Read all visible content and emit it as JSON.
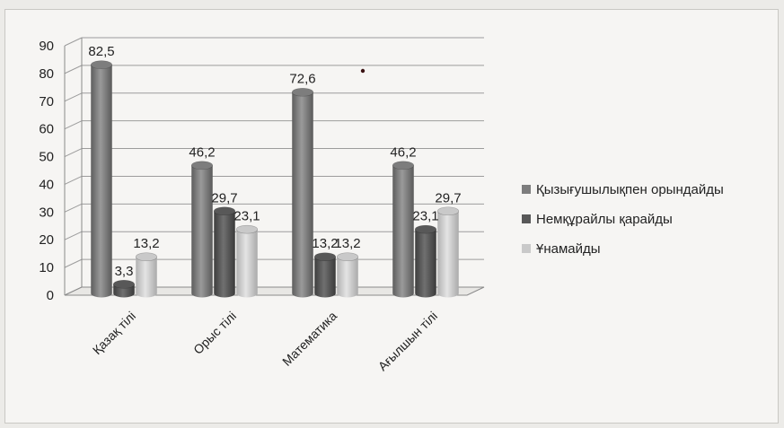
{
  "chart_data": {
    "type": "bar",
    "three_d": true,
    "categories": [
      "Қазақ тілі",
      "Орыс тілі",
      "Математика",
      "Ағылшын тілі"
    ],
    "series": [
      {
        "name": "Қызығушылықпен орындайды",
        "values": [
          82.5,
          46.2,
          72.6,
          46.2
        ],
        "labels": [
          "82,5",
          "46,2",
          "72,6",
          "46,2"
        ],
        "color": "#7d7d7d"
      },
      {
        "name": "Немқұрайлы қарайды",
        "values": [
          3.3,
          29.7,
          13.2,
          23.1
        ],
        "labels": [
          "3,3",
          "29,7",
          "13,2",
          "23,1"
        ],
        "color": "#585858"
      },
      {
        "name": "Ұнамайды",
        "values": [
          13.2,
          23.1,
          13.2,
          29.7
        ],
        "labels": [
          "13,2",
          "23,1",
          "13,2",
          "29,7"
        ],
        "color": "#c9c9c9"
      }
    ],
    "y_ticks": [
      "0",
      "10",
      "20",
      "30",
      "40",
      "50",
      "60",
      "70",
      "80",
      "90"
    ],
    "ylim": [
      0,
      90
    ],
    "grid": true,
    "legend_position": "right"
  }
}
